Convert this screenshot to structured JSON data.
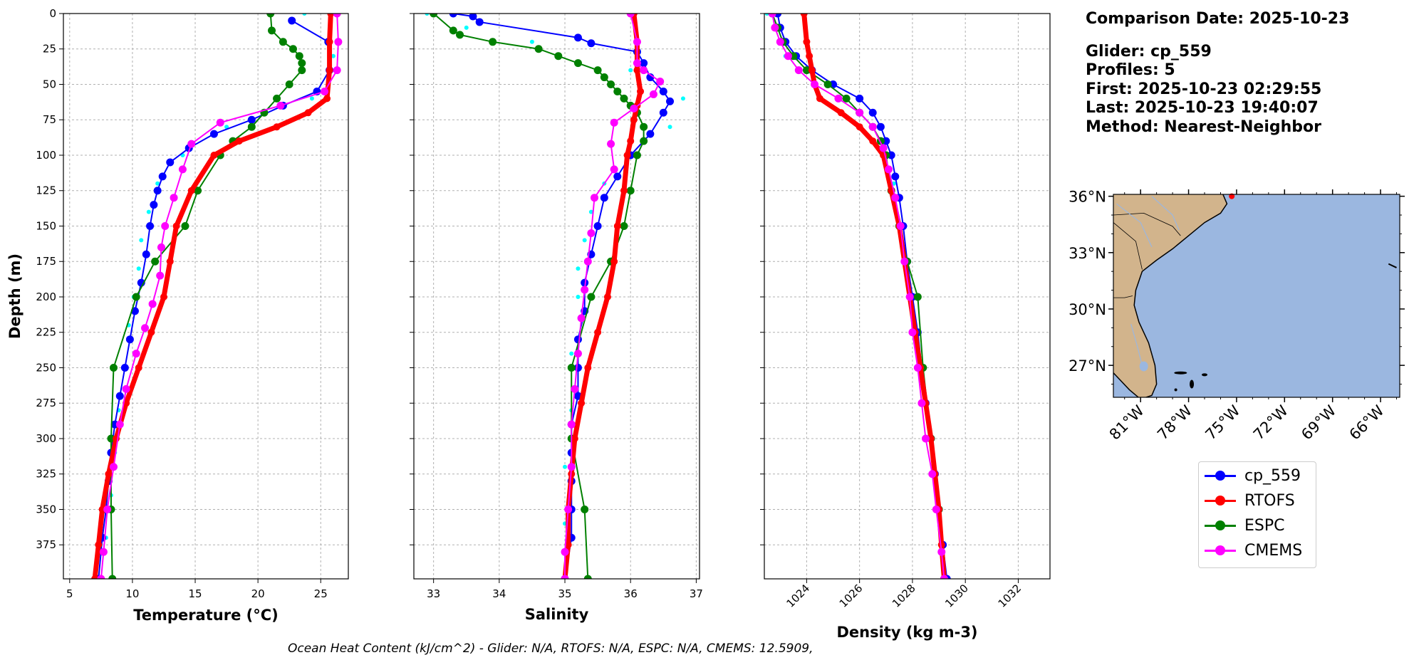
{
  "info": {
    "comparison_date": "Comparison Date: 2025-10-23",
    "glider": "Glider: cp_559",
    "profiles": "Profiles: 5",
    "first": "First: 2025-10-23 02:29:55",
    "last": "Last: 2025-10-23 19:40:07",
    "method": "Method: Nearest-Neighbor"
  },
  "footer": "Ocean Heat Content (kJ/cm^2) - Glider: N/A,  RTOFS: N/A,  ESPC: N/A,  CMEMS: 12.5909,",
  "colors": {
    "cp_559": "#0000ff",
    "RTOFS": "#ff0000",
    "ESPC": "#008000",
    "CMEMS": "#ff00ff",
    "raw": "#00ffff",
    "land": "#d2b48c",
    "ocean": "#9bb7e0"
  },
  "legend": [
    "cp_559",
    "RTOFS",
    "ESPC",
    "CMEMS"
  ],
  "chart_data": [
    {
      "type": "line",
      "title": "",
      "xlabel": "Temperature (°C)",
      "ylabel": "Depth (m)",
      "xlim": [
        4.5,
        27.2
      ],
      "ylim": [
        399,
        0
      ],
      "xticks": [
        "5",
        "10",
        "15",
        "20",
        "25"
      ],
      "yticks": [
        "0",
        "25",
        "50",
        "75",
        "100",
        "125",
        "150",
        "175",
        "200",
        "225",
        "250",
        "275",
        "300",
        "325",
        "350",
        "375"
      ],
      "grid": true,
      "series": [
        {
          "name": "cp_559",
          "depth": [
            5,
            20,
            40,
            55,
            65,
            75,
            85,
            95,
            105,
            115,
            125,
            135,
            150,
            170,
            190,
            210,
            230,
            250,
            270,
            290,
            310,
            330,
            350,
            370,
            399
          ],
          "values": [
            22.7,
            25.6,
            25.7,
            24.7,
            22.0,
            19.5,
            16.5,
            14.5,
            13.0,
            12.4,
            12.0,
            11.7,
            11.4,
            11.1,
            10.7,
            10.2,
            9.8,
            9.4,
            9.0,
            8.6,
            8.3,
            8.1,
            7.9,
            7.6,
            7.3
          ]
        },
        {
          "name": "RTOFS",
          "depth": [
            0,
            20,
            40,
            60,
            70,
            80,
            90,
            100,
            125,
            150,
            175,
            200,
            225,
            250,
            275,
            300,
            325,
            350,
            375,
            399
          ],
          "values": [
            25.8,
            25.7,
            25.7,
            25.5,
            24.0,
            21.5,
            18.5,
            16.5,
            14.7,
            13.5,
            13.0,
            12.5,
            11.5,
            10.5,
            9.5,
            8.7,
            8.1,
            7.6,
            7.3,
            7.0
          ]
        },
        {
          "name": "ESPC",
          "depth": [
            0,
            12,
            20,
            25,
            30,
            35,
            40,
            50,
            60,
            70,
            80,
            90,
            100,
            125,
            150,
            175,
            200,
            250,
            300,
            350,
            399
          ],
          "values": [
            21.0,
            21.1,
            22.0,
            22.8,
            23.3,
            23.5,
            23.5,
            22.5,
            21.5,
            20.5,
            19.5,
            18.0,
            17.0,
            15.2,
            14.2,
            11.8,
            10.3,
            8.5,
            8.3,
            8.3,
            8.4
          ]
        },
        {
          "name": "CMEMS",
          "depth": [
            0,
            20,
            40,
            55,
            65,
            77,
            92,
            110,
            130,
            150,
            165,
            185,
            205,
            222,
            240,
            265,
            290,
            320,
            350,
            380,
            399
          ],
          "values": [
            26.3,
            26.4,
            26.3,
            25.3,
            21.8,
            17.0,
            14.7,
            14.0,
            13.3,
            12.6,
            12.3,
            12.2,
            11.6,
            11.0,
            10.3,
            9.5,
            9.0,
            8.5,
            8.0,
            7.7,
            7.5
          ]
        },
        {
          "name": "raw",
          "depth": [
            0,
            30,
            60,
            80,
            100,
            120,
            140,
            160,
            180,
            200,
            220,
            250,
            280,
            310,
            340,
            370
          ],
          "values": [
            23.7,
            26.0,
            24.3,
            17.5,
            14.0,
            12.0,
            11.3,
            10.7,
            10.5,
            10.1,
            9.7,
            9.4,
            8.9,
            8.6,
            8.3,
            7.9
          ]
        }
      ]
    },
    {
      "type": "line",
      "title": "",
      "xlabel": "Salinity",
      "ylabel": "",
      "xlim": [
        32.7,
        37.05
      ],
      "ylim": [
        399,
        0
      ],
      "xticks": [
        "33",
        "34",
        "35",
        "36",
        "37"
      ],
      "yticks": [],
      "grid": true,
      "series": [
        {
          "name": "cp_559",
          "depth": [
            0,
            2,
            6,
            17,
            21,
            27,
            35,
            45,
            55,
            62,
            70,
            85,
            100,
            115,
            130,
            150,
            170,
            190,
            210,
            230,
            250,
            270,
            290,
            310,
            330,
            350,
            370,
            399
          ],
          "values": [
            33.3,
            33.6,
            33.7,
            35.2,
            35.4,
            36.1,
            36.2,
            36.3,
            36.5,
            36.6,
            36.5,
            36.3,
            36.0,
            35.8,
            35.6,
            35.5,
            35.4,
            35.3,
            35.3,
            35.2,
            35.2,
            35.2,
            35.1,
            35.1,
            35.1,
            35.1,
            35.1,
            35.0
          ]
        },
        {
          "name": "RTOFS",
          "depth": [
            0,
            20,
            40,
            55,
            65,
            75,
            90,
            100,
            125,
            150,
            175,
            200,
            225,
            250,
            275,
            300,
            325,
            350,
            375,
            399
          ],
          "values": [
            36.05,
            36.1,
            36.1,
            36.15,
            36.1,
            36.05,
            36.0,
            35.95,
            35.9,
            35.8,
            35.75,
            35.65,
            35.5,
            35.35,
            35.25,
            35.15,
            35.1,
            35.05,
            35.05,
            35.0
          ]
        },
        {
          "name": "ESPC",
          "depth": [
            0,
            12,
            15,
            20,
            25,
            30,
            35,
            40,
            45,
            50,
            55,
            60,
            65,
            70,
            80,
            90,
            100,
            125,
            150,
            175,
            200,
            250,
            300,
            350,
            399
          ],
          "values": [
            33.0,
            33.3,
            33.4,
            33.9,
            34.6,
            34.9,
            35.2,
            35.5,
            35.6,
            35.7,
            35.8,
            35.9,
            36.0,
            36.1,
            36.2,
            36.2,
            36.1,
            36.0,
            35.9,
            35.7,
            35.4,
            35.1,
            35.1,
            35.3,
            35.35
          ]
        },
        {
          "name": "CMEMS",
          "depth": [
            0,
            20,
            35,
            40,
            48,
            57,
            67,
            77,
            92,
            110,
            130,
            155,
            175,
            195,
            215,
            240,
            265,
            290,
            320,
            350,
            380,
            399
          ],
          "values": [
            36.0,
            36.1,
            36.1,
            36.2,
            36.45,
            36.35,
            36.05,
            35.75,
            35.7,
            35.75,
            35.45,
            35.4,
            35.35,
            35.3,
            35.25,
            35.2,
            35.15,
            35.1,
            35.1,
            35.05,
            35.0,
            35.0
          ]
        },
        {
          "name": "raw",
          "depth": [
            0,
            10,
            20,
            40,
            60,
            80,
            100,
            120,
            140,
            160,
            180,
            200,
            240,
            280,
            320,
            360
          ],
          "values": [
            32.9,
            33.5,
            34.5,
            36.0,
            36.8,
            36.6,
            36.0,
            35.6,
            35.4,
            35.3,
            35.2,
            35.2,
            35.1,
            35.1,
            35.0,
            35.0
          ]
        }
      ]
    },
    {
      "type": "line",
      "title": "",
      "xlabel": "Density (kg m-3)",
      "ylabel": "",
      "xlim": [
        1022.4,
        1033.2
      ],
      "ylim": [
        399,
        0
      ],
      "xticks": [
        "1024",
        "1026",
        "1028",
        "1030",
        "1032"
      ],
      "yticks": [],
      "grid": true,
      "series": [
        {
          "name": "cp_559",
          "depth": [
            0,
            10,
            20,
            30,
            40,
            50,
            60,
            70,
            80,
            90,
            100,
            115,
            130,
            150,
            175,
            200,
            225,
            250,
            275,
            300,
            325,
            350,
            375,
            399
          ],
          "values": [
            1022.9,
            1023.0,
            1023.2,
            1023.6,
            1024.2,
            1025.0,
            1026.0,
            1026.5,
            1026.8,
            1027.0,
            1027.2,
            1027.35,
            1027.5,
            1027.65,
            1027.8,
            1028.0,
            1028.2,
            1028.35,
            1028.5,
            1028.7,
            1028.85,
            1029.0,
            1029.15,
            1029.3
          ]
        },
        {
          "name": "RTOFS",
          "depth": [
            0,
            20,
            30,
            40,
            50,
            60,
            70,
            80,
            90,
            100,
            125,
            150,
            175,
            200,
            225,
            250,
            275,
            300,
            325,
            350,
            375,
            399
          ],
          "values": [
            1023.9,
            1024.0,
            1024.1,
            1024.2,
            1024.3,
            1024.5,
            1025.3,
            1026.0,
            1026.5,
            1026.9,
            1027.2,
            1027.5,
            1027.7,
            1027.9,
            1028.1,
            1028.3,
            1028.5,
            1028.7,
            1028.85,
            1029.0,
            1029.1,
            1029.2
          ]
        },
        {
          "name": "ESPC",
          "depth": [
            0,
            10,
            20,
            30,
            40,
            50,
            60,
            70,
            80,
            90,
            100,
            125,
            150,
            175,
            200,
            250,
            300,
            350,
            399
          ],
          "values": [
            1022.7,
            1022.9,
            1023.1,
            1023.5,
            1024.0,
            1024.8,
            1025.5,
            1026.0,
            1026.5,
            1026.8,
            1027.0,
            1027.2,
            1027.5,
            1027.8,
            1028.2,
            1028.4,
            1028.7,
            1029.0,
            1029.2
          ]
        },
        {
          "name": "CMEMS",
          "depth": [
            0,
            10,
            20,
            30,
            40,
            50,
            60,
            70,
            80,
            95,
            110,
            130,
            150,
            175,
            200,
            225,
            250,
            275,
            300,
            325,
            350,
            380,
            399
          ],
          "values": [
            1022.7,
            1022.8,
            1023.0,
            1023.3,
            1023.7,
            1024.3,
            1025.2,
            1026.0,
            1026.5,
            1026.9,
            1027.1,
            1027.35,
            1027.55,
            1027.7,
            1027.9,
            1028.0,
            1028.2,
            1028.35,
            1028.5,
            1028.75,
            1028.9,
            1029.1,
            1029.2
          ]
        },
        {
          "name": "raw",
          "depth": [
            0,
            10,
            30,
            50,
            70,
            90,
            120,
            150,
            200,
            250,
            300,
            350,
            399
          ],
          "values": [
            1022.5,
            1022.8,
            1023.2,
            1024.3,
            1026.0,
            1026.9,
            1027.3,
            1027.6,
            1028.0,
            1028.4,
            1028.75,
            1029.05,
            1029.3
          ]
        }
      ]
    },
    {
      "type": "map",
      "xlim": [
        -82.7,
        -64.8
      ],
      "ylim": [
        25.3,
        36.1
      ],
      "xticks": [
        "81°W",
        "78°W",
        "75°W",
        "72°W",
        "69°W",
        "66°W"
      ],
      "yticks": [
        "36°N",
        "33°N",
        "30°N",
        "27°N"
      ],
      "glider_position": {
        "lon": -75.3,
        "lat": 36.0
      }
    }
  ]
}
